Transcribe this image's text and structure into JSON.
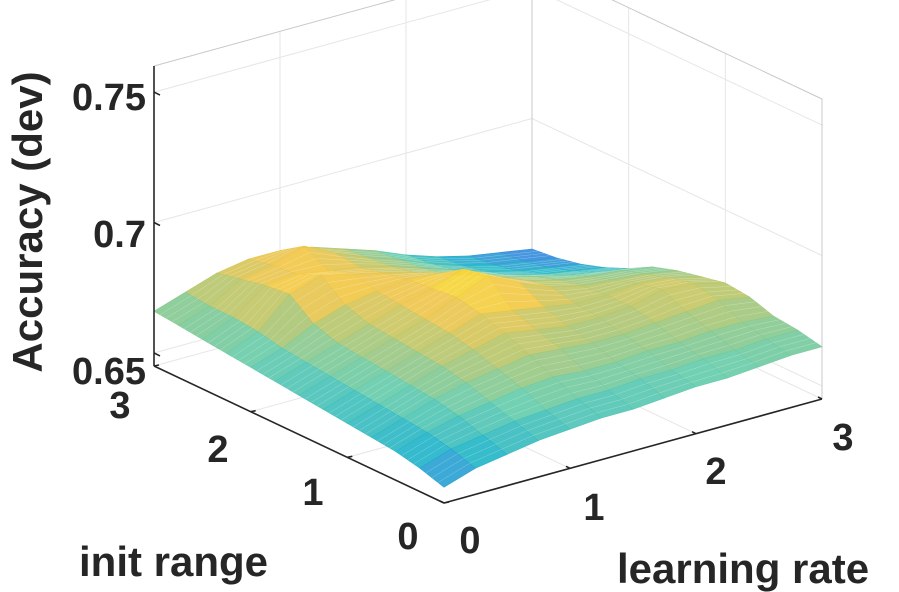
{
  "chart_data": {
    "type": "surface",
    "xlabel": "learning rate",
    "ylabel": "init range",
    "zlabel": "Accuracy (dev)",
    "xlim": [
      0,
      3
    ],
    "ylim": [
      0,
      3
    ],
    "zlim": [
      0.645,
      0.76
    ],
    "xticks": [
      "0",
      "1",
      "2",
      "3"
    ],
    "yticks": [
      "0",
      "1",
      "2",
      "3"
    ],
    "zticks": [
      "0.65",
      "0.7",
      "0.75"
    ],
    "grid": true,
    "colormap": [
      "#3c83e2",
      "#23b5c9",
      "#67ccac",
      "#b1c773",
      "#f2c64a",
      "#f9e229"
    ],
    "x": [
      0,
      0.25,
      0.5,
      0.75,
      1.0,
      1.25,
      1.5,
      1.75,
      2.0,
      2.25,
      2.5,
      2.75,
      3.0
    ],
    "y": [
      0,
      0.25,
      0.5,
      0.75,
      1.0,
      1.25,
      1.5,
      1.75,
      2.0,
      2.25,
      2.5,
      2.75,
      3.0
    ],
    "z": [
      [
        0.651,
        0.655,
        0.657,
        0.659,
        0.66,
        0.661,
        0.661,
        0.662,
        0.663,
        0.663,
        0.664,
        0.665,
        0.665
      ],
      [
        0.654,
        0.658,
        0.66,
        0.662,
        0.663,
        0.664,
        0.664,
        0.665,
        0.665,
        0.666,
        0.666,
        0.667,
        0.667
      ],
      [
        0.656,
        0.66,
        0.663,
        0.665,
        0.667,
        0.668,
        0.667,
        0.667,
        0.668,
        0.668,
        0.669,
        0.669,
        0.668
      ],
      [
        0.657,
        0.661,
        0.665,
        0.668,
        0.67,
        0.672,
        0.671,
        0.67,
        0.67,
        0.671,
        0.672,
        0.673,
        0.671
      ],
      [
        0.658,
        0.662,
        0.666,
        0.67,
        0.673,
        0.676,
        0.674,
        0.672,
        0.672,
        0.673,
        0.676,
        0.675,
        0.672
      ],
      [
        0.659,
        0.663,
        0.667,
        0.671,
        0.675,
        0.679,
        0.677,
        0.675,
        0.673,
        0.673,
        0.674,
        0.673,
        0.67
      ],
      [
        0.66,
        0.664,
        0.668,
        0.672,
        0.676,
        0.681,
        0.686,
        0.68,
        0.675,
        0.672,
        0.671,
        0.67,
        0.668
      ],
      [
        0.661,
        0.665,
        0.669,
        0.673,
        0.677,
        0.68,
        0.684,
        0.678,
        0.673,
        0.67,
        0.668,
        0.667,
        0.665
      ],
      [
        0.662,
        0.666,
        0.672,
        0.676,
        0.678,
        0.679,
        0.678,
        0.674,
        0.67,
        0.667,
        0.664,
        0.662,
        0.66
      ],
      [
        0.663,
        0.668,
        0.679,
        0.683,
        0.68,
        0.677,
        0.674,
        0.67,
        0.667,
        0.663,
        0.66,
        0.658,
        0.656
      ],
      [
        0.664,
        0.669,
        0.678,
        0.679,
        0.677,
        0.675,
        0.672,
        0.668,
        0.664,
        0.66,
        0.657,
        0.655,
        0.653
      ],
      [
        0.665,
        0.669,
        0.676,
        0.678,
        0.682,
        0.676,
        0.671,
        0.667,
        0.662,
        0.658,
        0.655,
        0.653,
        0.651
      ],
      [
        0.666,
        0.67,
        0.674,
        0.676,
        0.676,
        0.674,
        0.67,
        0.666,
        0.661,
        0.657,
        0.654,
        0.652,
        0.65
      ]
    ]
  }
}
